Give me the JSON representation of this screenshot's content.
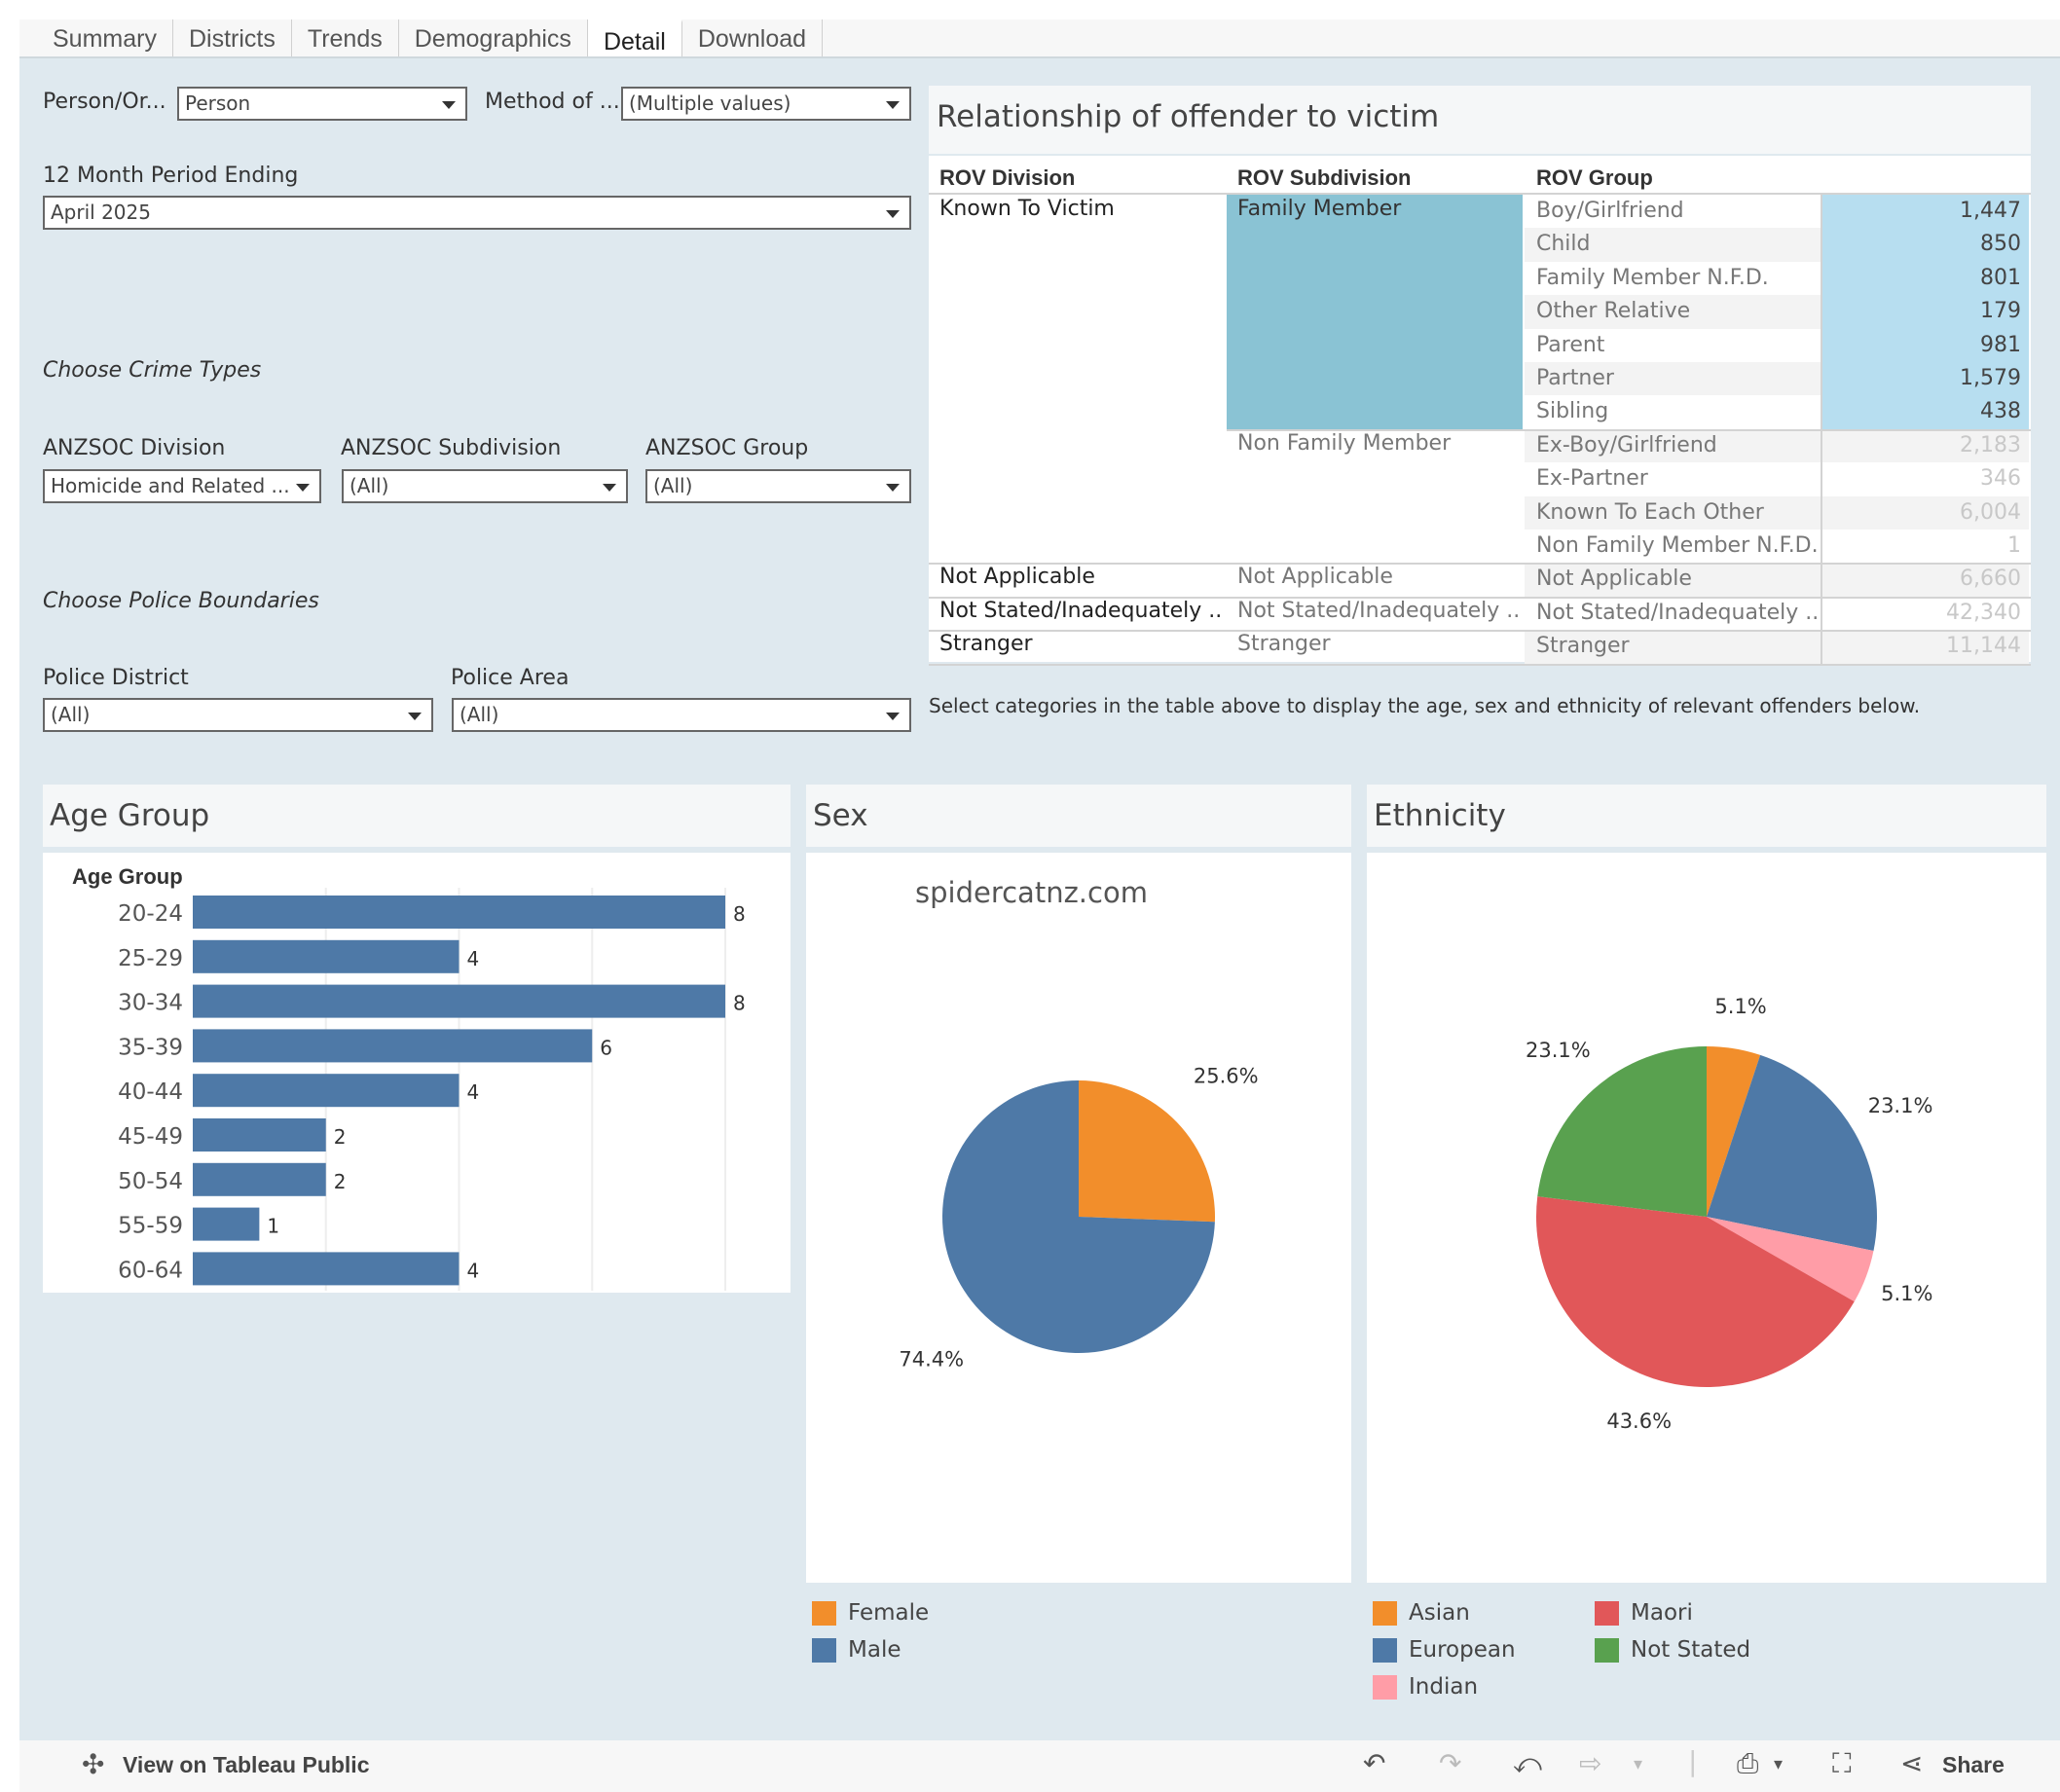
{
  "tabs": [
    "Summary",
    "Districts",
    "Trends",
    "Demographics",
    "Detail",
    "Download"
  ],
  "active_tab": "Detail",
  "filters": {
    "person_org": {
      "label": "Person/Or...",
      "value": "Person"
    },
    "method": {
      "label": "Method of ...",
      "value": "(Multiple values)"
    },
    "period": {
      "label": "12 Month Period Ending",
      "value": "April 2025"
    },
    "crime_heading": "Choose Crime Types",
    "anzsoc_division": {
      "label": "ANZSOC Division",
      "value": "Homicide and Related ..."
    },
    "anzsoc_subdivision": {
      "label": "ANZSOC Subdivision",
      "value": "(All)"
    },
    "anzsoc_group": {
      "label": "ANZSOC Group",
      "value": "(All)"
    },
    "police_heading": "Choose Police Boundaries",
    "police_district": {
      "label": "Police District",
      "value": "(All)"
    },
    "police_area": {
      "label": "Police Area",
      "value": "(All)"
    }
  },
  "rov": {
    "title": "Relationship of offender to victim",
    "headers": [
      "ROV Division",
      "ROV Subdivision",
      "ROV Group"
    ],
    "divisions": [
      "Known To Victim",
      "Not Applicable",
      "Not Stated/Inadequately ..",
      "Stranger"
    ],
    "subdivisions": [
      "Family Member",
      "Non Family Member",
      "Not Applicable",
      "Not Stated/Inadequately ..",
      "Stranger"
    ],
    "rows": [
      {
        "group": "Boy/Girlfriend",
        "value": "1,447",
        "selected": true
      },
      {
        "group": "Child",
        "value": "850",
        "selected": true
      },
      {
        "group": "Family Member N.F.D.",
        "value": "801",
        "selected": true
      },
      {
        "group": "Other Relative",
        "value": "179",
        "selected": true
      },
      {
        "group": "Parent",
        "value": "981",
        "selected": true
      },
      {
        "group": "Partner",
        "value": "1,579",
        "selected": true
      },
      {
        "group": "Sibling",
        "value": "438",
        "selected": true
      },
      {
        "group": "Ex-Boy/Girlfriend",
        "value": "2,183",
        "selected": false
      },
      {
        "group": "Ex-Partner",
        "value": "346",
        "selected": false
      },
      {
        "group": "Known To Each Other",
        "value": "6,004",
        "selected": false
      },
      {
        "group": "Non Family Member N.F.D.",
        "value": "1",
        "selected": false
      },
      {
        "group": "Not Applicable",
        "value": "6,660",
        "selected": false
      },
      {
        "group": "Not Stated/Inadequately ..",
        "value": "42,340",
        "selected": false
      },
      {
        "group": "Stranger",
        "value": "11,144",
        "selected": false
      }
    ],
    "note": "Select categories in the  table above to display the age, sex and ethnicity of relevant offenders below.",
    "colors": {
      "selected_sub": "#8ac3d4",
      "selected_num": "#b7def0",
      "dim_text": "#c8c8c8"
    }
  },
  "chart_titles": {
    "age": "Age Group",
    "sex": "Sex",
    "ethnicity": "Ethnicity"
  },
  "watermark": "spidercatnz.com",
  "chart_data": [
    {
      "type": "bar",
      "orientation": "horizontal",
      "ylabel": "Age Group",
      "categories": [
        "20-24",
        "25-29",
        "30-34",
        "35-39",
        "40-44",
        "45-49",
        "50-54",
        "55-59",
        "60-64"
      ],
      "values": [
        8,
        4,
        8,
        6,
        4,
        2,
        2,
        1,
        4
      ],
      "xlim": [
        0,
        8
      ],
      "grid": true,
      "color": "#4e79a7"
    },
    {
      "type": "pie",
      "labels": [
        "Female",
        "Male"
      ],
      "values": [
        25.6,
        74.4
      ],
      "value_labels": [
        "25.6%",
        "74.4%"
      ],
      "colors": [
        "#f28e2b",
        "#4e79a7"
      ],
      "legend": "bottom-left"
    },
    {
      "type": "pie",
      "labels": [
        "Asian",
        "European",
        "Indian",
        "Maori",
        "Not Stated"
      ],
      "values": [
        5.1,
        23.1,
        5.1,
        43.6,
        23.1
      ],
      "value_labels": [
        "5.1%",
        "23.1%",
        "5.1%",
        "43.6%",
        "23.1%"
      ],
      "colors": [
        "#f28e2b",
        "#4e79a7",
        "#ff9da7",
        "#e15759",
        "#59a14f"
      ],
      "legend": "bottom"
    }
  ],
  "bottombar": {
    "view_label": "View on Tableau Public",
    "share_label": "Share"
  }
}
